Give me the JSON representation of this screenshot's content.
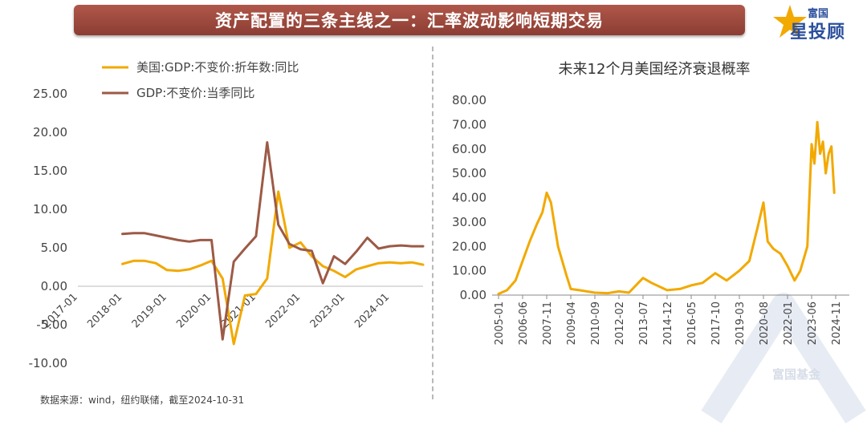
{
  "banner": {
    "title": "资产配置的三条主线之一：汇率波动影响短期交易"
  },
  "logo": {
    "top": "富国",
    "main": "星投顾"
  },
  "watermark": {
    "text": "富国基金"
  },
  "source": "数据来源：wind，纽约联储，截至2024-10-31",
  "colors": {
    "gold": "#f2a900",
    "brown": "#9c5a46",
    "banner": "#9c4a3e",
    "brand": "#2b4f9c"
  },
  "chart_data": [
    {
      "type": "line",
      "title": "",
      "ylim": [
        -10,
        25
      ],
      "yticks": [
        "25.00",
        "20.00",
        "15.00",
        "10.00",
        "5.00",
        "0.00",
        "-5.00",
        "-10.00"
      ],
      "xticks": [
        "2017-01",
        "2018-01",
        "2019-01",
        "2020-01",
        "2021-01",
        "2022-01",
        "2023-01",
        "2024-01"
      ],
      "legend_position": "top-left",
      "x": [
        "2018-01",
        "2018-04",
        "2018-07",
        "2018-10",
        "2019-01",
        "2019-04",
        "2019-07",
        "2019-10",
        "2020-01",
        "2020-04",
        "2020-07",
        "2020-10",
        "2021-01",
        "2021-04",
        "2021-07",
        "2021-10",
        "2022-01",
        "2022-04",
        "2022-07",
        "2022-10",
        "2023-01",
        "2023-04",
        "2023-07",
        "2023-10",
        "2024-01",
        "2024-04",
        "2024-07",
        "2024-10"
      ],
      "series": [
        {
          "name": "美国:GDP:不变价:折年数:同比",
          "color": "#f2a900",
          "values": [
            2.9,
            3.3,
            3.3,
            3.0,
            2.1,
            2.0,
            2.2,
            2.7,
            3.3,
            1.0,
            -7.5,
            -1.2,
            -1.0,
            1.0,
            12.3,
            5.0,
            5.7,
            3.9,
            2.6,
            2.0,
            1.2,
            2.2,
            2.6,
            3.0,
            3.1,
            3.0,
            3.1,
            2.8
          ]
        },
        {
          "name": "GDP:不变价:当季同比",
          "color": "#9c5a46",
          "values": [
            6.8,
            6.9,
            6.9,
            6.6,
            6.3,
            6.0,
            5.8,
            6.0,
            6.0,
            -6.9,
            3.2,
            4.9,
            6.5,
            18.7,
            8.0,
            5.5,
            4.8,
            4.6,
            0.4,
            3.9,
            2.9,
            4.5,
            6.3,
            4.9,
            5.2,
            5.3,
            5.2,
            5.2
          ]
        }
      ]
    },
    {
      "type": "line",
      "title": "未来12个月美国经济衰退概率",
      "ylim": [
        0,
        80
      ],
      "yticks": [
        "80.00",
        "70.00",
        "60.00",
        "50.00",
        "40.00",
        "30.00",
        "20.00",
        "10.00",
        "0.00"
      ],
      "xticks": [
        "2005-01",
        "2006-06",
        "2007-11",
        "2009-04",
        "2010-09",
        "2012-02",
        "2013-07",
        "2014-12",
        "2016-05",
        "2017-10",
        "2019-03",
        "2020-08",
        "2022-01",
        "2023-06",
        "2024-11"
      ],
      "x": [
        "2005-01",
        "2005-07",
        "2006-01",
        "2006-06",
        "2006-11",
        "2007-04",
        "2007-08",
        "2007-11",
        "2008-02",
        "2008-07",
        "2009-01",
        "2009-04",
        "2009-10",
        "2010-09",
        "2011-06",
        "2012-02",
        "2012-09",
        "2013-07",
        "2014-01",
        "2014-12",
        "2015-09",
        "2016-05",
        "2017-01",
        "2017-10",
        "2018-06",
        "2019-03",
        "2019-10",
        "2020-04",
        "2020-08",
        "2020-11",
        "2021-03",
        "2021-08",
        "2022-01",
        "2022-06",
        "2022-10",
        "2023-03",
        "2023-06",
        "2023-08",
        "2023-10",
        "2023-12",
        "2024-02",
        "2024-04",
        "2024-06",
        "2024-08",
        "2024-10"
      ],
      "series": [
        {
          "name": "",
          "color": "#f2a900",
          "values": [
            0.5,
            2,
            6,
            14,
            22,
            29,
            34,
            42,
            38,
            20,
            8,
            2.5,
            2,
            1,
            0.8,
            1.5,
            1,
            7,
            5,
            2,
            2.5,
            4,
            5,
            9,
            6,
            10,
            14,
            28,
            38,
            22,
            19,
            17,
            12,
            6,
            10,
            20,
            62,
            54,
            71,
            58,
            63,
            50,
            58,
            61,
            42
          ]
        }
      ]
    }
  ]
}
